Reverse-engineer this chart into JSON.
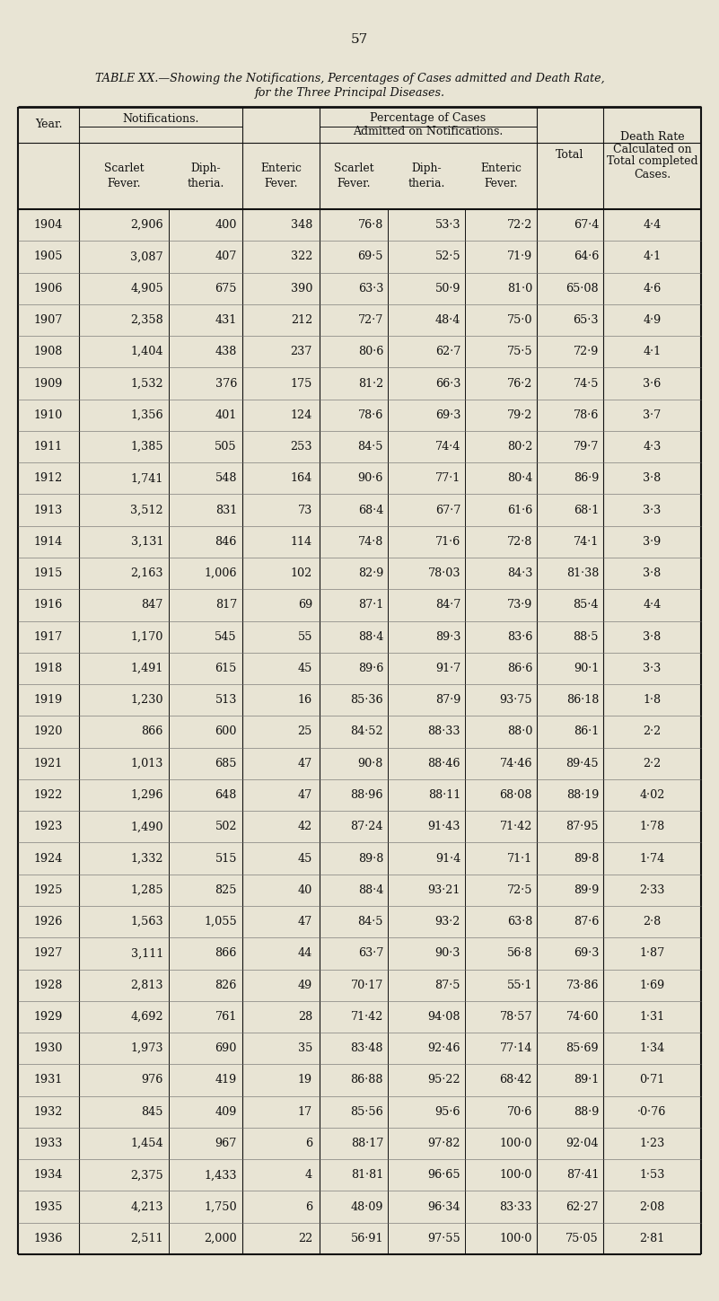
{
  "page_number": "57",
  "title_line1": "TABLE XX.—Showing the Notifications, Percentages of Cases admitted and Death Rate,",
  "title_line2": "for the Three Principal Diseases.",
  "background_color": "#e8e4d4",
  "rows": [
    [
      "1904",
      "2,906",
      "400",
      "348",
      "76·8",
      "53·3",
      "72·2",
      "67·4",
      "4·4"
    ],
    [
      "1905",
      "3,087",
      "407",
      "322",
      "69·5",
      "52·5",
      "71·9",
      "64·6",
      "4·1"
    ],
    [
      "1906",
      "4,905",
      "675",
      "390",
      "63·3",
      "50·9",
      "81·0",
      "65·08",
      "4·6"
    ],
    [
      "1907",
      "2,358",
      "431",
      "212",
      "72·7",
      "48·4",
      "75·0",
      "65·3",
      "4·9"
    ],
    [
      "1908",
      "1,404",
      "438",
      "237",
      "80·6",
      "62·7",
      "75·5",
      "72·9",
      "4·1"
    ],
    [
      "1909",
      "1,532",
      "376",
      "175",
      "81·2",
      "66·3",
      "76·2",
      "74·5",
      "3·6"
    ],
    [
      "1910",
      "1,356",
      "401",
      "124",
      "78·6",
      "69·3",
      "79·2",
      "78·6",
      "3·7"
    ],
    [
      "1911",
      "1,385",
      "505",
      "253",
      "84·5",
      "74·4",
      "80·2",
      "79·7",
      "4·3"
    ],
    [
      "1912",
      "1,741",
      "548",
      "164",
      "90·6",
      "77·1",
      "80·4",
      "86·9",
      "3·8"
    ],
    [
      "1913",
      "3,512",
      "831",
      "73",
      "68·4",
      "67·7",
      "61·6",
      "68·1",
      "3·3"
    ],
    [
      "1914",
      "3,131",
      "846",
      "114",
      "74·8",
      "71·6",
      "72·8",
      "74·1",
      "3·9"
    ],
    [
      "1915",
      "2,163",
      "1,006",
      "102",
      "82·9",
      "78·03",
      "84·3",
      "81·38",
      "3·8"
    ],
    [
      "1916",
      "847",
      "817",
      "69",
      "87·1",
      "84·7",
      "73·9",
      "85·4",
      "4·4"
    ],
    [
      "1917",
      "1,170",
      "545",
      "55",
      "88·4",
      "89·3",
      "83·6",
      "88·5",
      "3·8"
    ],
    [
      "1918",
      "1,491",
      "615",
      "45",
      "89·6",
      "91·7",
      "86·6",
      "90·1",
      "3·3"
    ],
    [
      "1919",
      "1,230",
      "513",
      "16",
      "85·36",
      "87·9",
      "93·75",
      "86·18",
      "1·8"
    ],
    [
      "1920",
      "866",
      "600",
      "25",
      "84·52",
      "88·33",
      "88·0",
      "86·1",
      "2·2"
    ],
    [
      "1921",
      "1,013",
      "685",
      "47",
      "90·8",
      "88·46",
      "74·46",
      "89·45",
      "2·2"
    ],
    [
      "1922",
      "1,296",
      "648",
      "47",
      "88·96",
      "88·11",
      "68·08",
      "88·19",
      "4·02"
    ],
    [
      "1923",
      "1,490",
      "502",
      "42",
      "87·24",
      "91·43",
      "71·42",
      "87·95",
      "1·78"
    ],
    [
      "1924",
      "1,332",
      "515",
      "45",
      "89·8",
      "91·4",
      "71·1",
      "89·8",
      "1·74"
    ],
    [
      "1925",
      "1,285",
      "825",
      "40",
      "88·4",
      "93·21",
      "72·5",
      "89·9",
      "2·33"
    ],
    [
      "1926",
      "1,563",
      "1,055",
      "47",
      "84·5",
      "93·2",
      "63·8",
      "87·6",
      "2·8"
    ],
    [
      "1927",
      "3,111",
      "866",
      "44",
      "63·7",
      "90·3",
      "56·8",
      "69·3",
      "1·87"
    ],
    [
      "1928",
      "2,813",
      "826",
      "49",
      "70·17",
      "87·5",
      "55·1",
      "73·86",
      "1·69"
    ],
    [
      "1929",
      "4,692",
      "761",
      "28",
      "71·42",
      "94·08",
      "78·57",
      "74·60",
      "1·31"
    ],
    [
      "1930",
      "1,973",
      "690",
      "35",
      "83·48",
      "92·46",
      "77·14",
      "85·69",
      "1·34"
    ],
    [
      "1931",
      "976",
      "419",
      "19",
      "86·88",
      "95·22",
      "68·42",
      "89·1",
      "0·71"
    ],
    [
      "1932",
      "845",
      "409",
      "17",
      "85·56",
      "95·6",
      "70·6",
      "88·9",
      "·0·76"
    ],
    [
      "1933",
      "1,454",
      "967",
      "6",
      "88·17",
      "97·82",
      "100·0",
      "92·04",
      "1·23"
    ],
    [
      "1934",
      "2,375",
      "1,433",
      "4",
      "81·81",
      "96·65",
      "100·0",
      "87·41",
      "1·53"
    ],
    [
      "1935",
      "4,213",
      "1,750",
      "6",
      "48·09",
      "96·34",
      "83·33",
      "62·27",
      "2·08"
    ],
    [
      "1936",
      "2,511",
      "2,000",
      "22",
      "56·91",
      "97·55",
      "100·0",
      "75·05",
      "2·81"
    ]
  ]
}
